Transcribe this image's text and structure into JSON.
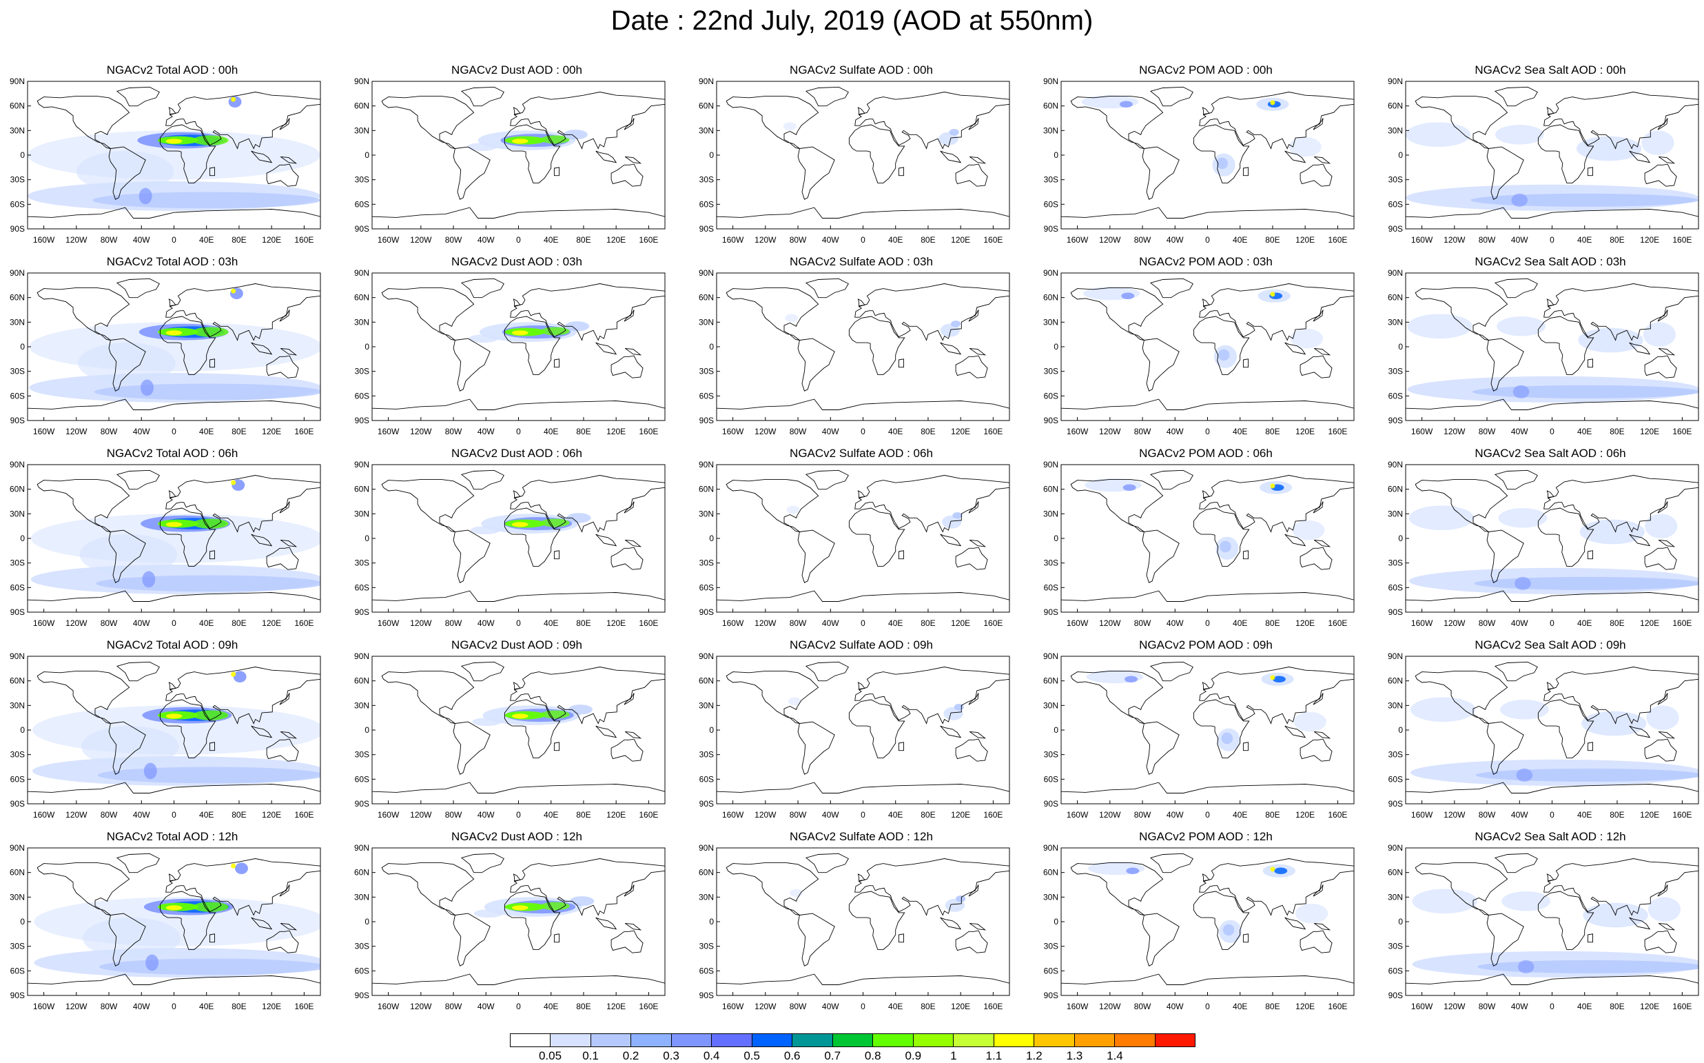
{
  "title": "Date : 22nd July, 2019 (AOD at 550nm)",
  "latitude_ticks": [
    "90N",
    "60N",
    "30N",
    "0",
    "30S",
    "60S",
    "90S"
  ],
  "longitude_ticks": [
    "160W",
    "120W",
    "80W",
    "40W",
    "0",
    "40E",
    "80E",
    "120E",
    "160E"
  ],
  "panels": [
    [
      "NGACv2 Total AOD : 00h",
      "NGACv2 Dust AOD : 00h",
      "NGACv2 Sulfate AOD : 00h",
      "NGACv2 POM AOD : 00h",
      "NGACv2 Sea Salt AOD : 00h"
    ],
    [
      "NGACv2 Total AOD : 03h",
      "NGACv2 Dust AOD : 03h",
      "NGACv2 Sulfate AOD : 03h",
      "NGACv2 POM AOD : 03h",
      "NGACv2 Sea Salt AOD : 03h"
    ],
    [
      "NGACv2 Total AOD : 06h",
      "NGACv2 Dust AOD : 06h",
      "NGACv2 Sulfate AOD : 06h",
      "NGACv2 POM AOD : 06h",
      "NGACv2 Sea Salt AOD : 06h"
    ],
    [
      "NGACv2 Total AOD : 09h",
      "NGACv2 Dust AOD : 09h",
      "NGACv2 Sulfate AOD : 09h",
      "NGACv2 POM AOD : 09h",
      "NGACv2 Sea Salt  AOD : 09h"
    ],
    [
      "NGACv2 Total AOD  : 12h",
      "NGACv2 Dust AOD : 12h",
      "NGACv2 Sulfate AOD : 12h",
      "NGACv2 POM  AOD : 12h",
      "NGACv2 Sea Salt  AOD : 12h"
    ]
  ],
  "colorbar": {
    "labels": [
      "0.05",
      "0.1",
      "0.2",
      "0.3",
      "0.4",
      "0.5",
      "0.6",
      "0.7",
      "0.8",
      "0.9",
      "1",
      "1.1",
      "1.2",
      "1.3",
      "1.4"
    ],
    "colors": [
      "#ffffff",
      "#d6e2ff",
      "#b5c9ff",
      "#8eb2ff",
      "#7f96ff",
      "#6370ff",
      "#0063ff",
      "#009696",
      "#00c633",
      "#63ff00",
      "#96ff00",
      "#c6ff33",
      "#ffff00",
      "#ffc600",
      "#ffa000",
      "#ff7c00",
      "#ff1900"
    ]
  },
  "colors": {
    "coastline": "#000000",
    "ocean_background": "#ffffff",
    "background_aod_light": "#d6e2ff",
    "aod_low": "#b5c9ff",
    "aod_moderate": "#7f96ff",
    "aod_high": "#0063ff",
    "aod_peak_green": "#63ff00",
    "aod_peak_yellow": "#ffff00"
  }
}
